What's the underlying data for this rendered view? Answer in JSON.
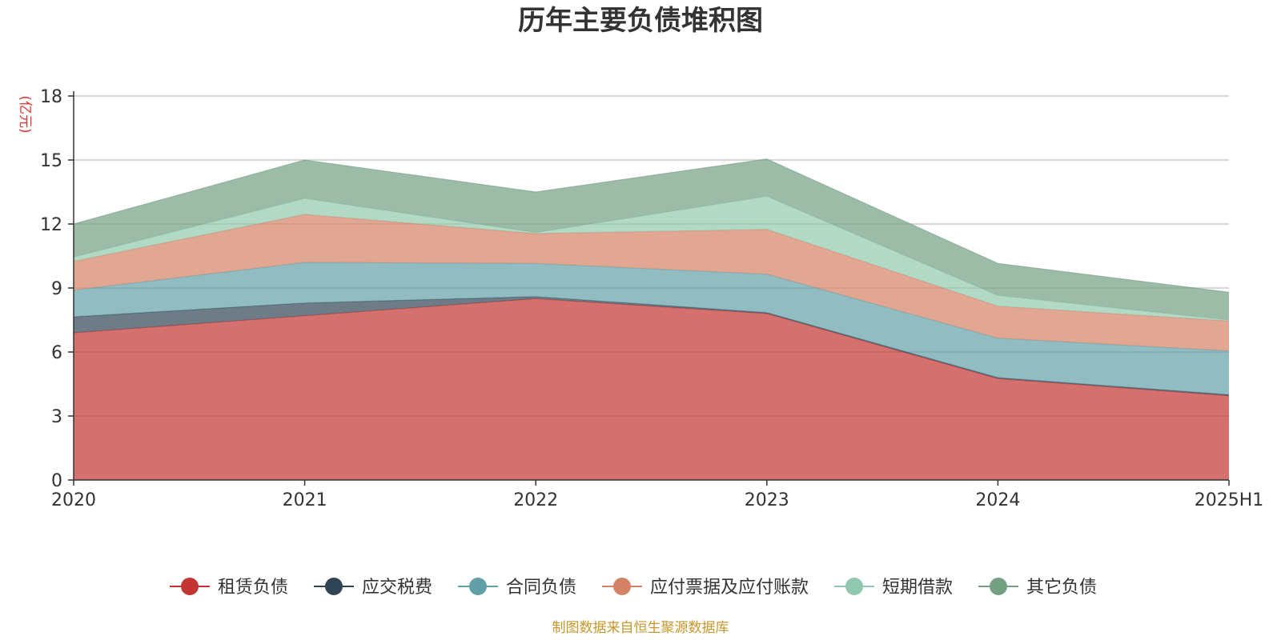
{
  "chart_data": {
    "type": "area",
    "stacked": true,
    "title": "历年主要负债堆积图",
    "ylabel": "(亿元)",
    "xlabel": "",
    "x": [
      "2020",
      "2021",
      "2022",
      "2023",
      "2024",
      "2025H1"
    ],
    "ylim": [
      0,
      18
    ],
    "yticks": [
      0,
      3,
      6,
      9,
      12,
      15,
      18
    ],
    "grid": true,
    "legend_position": "bottom",
    "series": [
      {
        "name": "租赁负债",
        "values": [
          6.9,
          7.7,
          8.5,
          7.8,
          4.75,
          3.95
        ],
        "color": "#c23531"
      },
      {
        "name": "应交税费",
        "values": [
          0.75,
          0.6,
          0.1,
          0.05,
          0.05,
          0.05
        ],
        "color": "#2f4554"
      },
      {
        "name": "合同负债",
        "values": [
          1.25,
          1.9,
          1.55,
          1.8,
          1.85,
          2.05
        ],
        "color": "#61a0a8"
      },
      {
        "name": "应付票据及应付账款",
        "values": [
          1.35,
          2.25,
          1.4,
          2.1,
          1.5,
          1.4
        ],
        "color": "#d48265"
      },
      {
        "name": "短期借款",
        "values": [
          0.2,
          0.75,
          0.05,
          1.55,
          0.5,
          0.05
        ],
        "color": "#91c7ae"
      },
      {
        "name": "其它负债",
        "values": [
          1.55,
          1.8,
          1.9,
          1.75,
          1.5,
          1.3
        ],
        "color": "#749f83"
      }
    ],
    "source": "制图数据来自恒生聚源数据库"
  }
}
